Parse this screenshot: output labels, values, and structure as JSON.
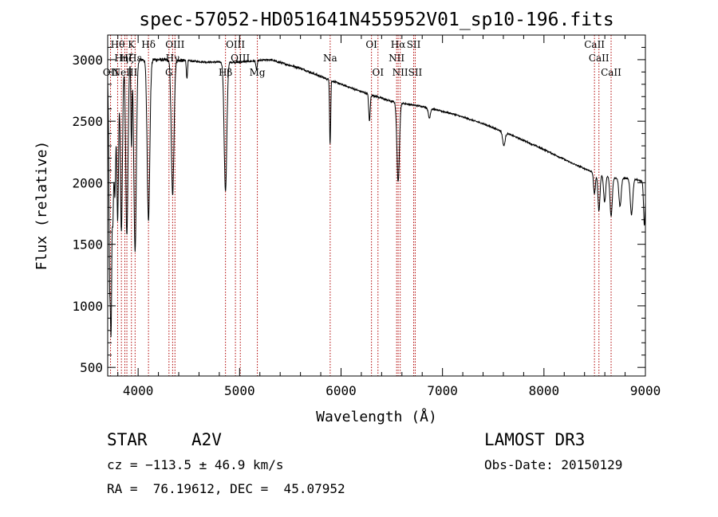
{
  "chart_data": {
    "type": "line",
    "title": "spec-57052-HD051641N455952V01_sp10-196.fits",
    "xlabel": "Wavelength (Å)",
    "ylabel": "Flux (relative)",
    "xlim": [
      3700,
      9000
    ],
    "ylim": [
      430,
      3200
    ],
    "xticks": [
      4000,
      5000,
      6000,
      7000,
      8000,
      9000
    ],
    "yticks": [
      500,
      1000,
      1500,
      2000,
      2500,
      3000
    ],
    "series": [
      {
        "name": "spectrum",
        "continuum": {
          "x": [
            3700,
            3800,
            3900,
            4000,
            4200,
            4500,
            4700,
            5000,
            5300,
            5600,
            5900,
            6200,
            6500,
            6800,
            7100,
            7400,
            7700,
            8000,
            8300,
            8500,
            8700,
            8900,
            9000
          ],
          "y": [
            2900,
            2950,
            2980,
            3000,
            3000,
            2990,
            2980,
            2980,
            3000,
            2930,
            2830,
            2740,
            2660,
            2620,
            2560,
            2480,
            2380,
            2270,
            2150,
            2080,
            2040,
            2030,
            2000
          ]
        },
        "absorption_features": [
          {
            "center": 3720,
            "depth": 1700,
            "width": 8
          },
          {
            "center": 3734,
            "depth": 1600,
            "width": 6
          },
          {
            "center": 3750,
            "depth": 1200,
            "width": 8
          },
          {
            "center": 3771,
            "depth": 1000,
            "width": 8
          },
          {
            "center": 3798,
            "depth": 1250,
            "width": 9
          },
          {
            "center": 3835,
            "depth": 1350,
            "width": 10
          },
          {
            "center": 3889,
            "depth": 1400,
            "width": 11
          },
          {
            "center": 3934,
            "depth": 700,
            "width": 5
          },
          {
            "center": 3970,
            "depth": 1550,
            "width": 12
          },
          {
            "center": 4102,
            "depth": 1300,
            "width": 13
          },
          {
            "center": 4340,
            "depth": 1100,
            "width": 13
          },
          {
            "center": 4481,
            "depth": 150,
            "width": 5
          },
          {
            "center": 4861,
            "depth": 1050,
            "width": 13
          },
          {
            "center": 5167,
            "depth": 80,
            "width": 6
          },
          {
            "center": 5890,
            "depth": 380,
            "width": 4
          },
          {
            "center": 5896,
            "depth": 300,
            "width": 4
          },
          {
            "center": 6280,
            "depth": 220,
            "width": 7
          },
          {
            "center": 6563,
            "depth": 650,
            "width": 12
          },
          {
            "center": 6870,
            "depth": 80,
            "width": 10
          },
          {
            "center": 7605,
            "depth": 110,
            "width": 12
          },
          {
            "center": 8498,
            "depth": 170,
            "width": 9
          },
          {
            "center": 8542,
            "depth": 300,
            "width": 10
          },
          {
            "center": 8598,
            "depth": 220,
            "width": 10
          },
          {
            "center": 8662,
            "depth": 320,
            "width": 11
          },
          {
            "center": 8750,
            "depth": 230,
            "width": 11
          },
          {
            "center": 8863,
            "depth": 290,
            "width": 12
          },
          {
            "center": 8990,
            "depth": 350,
            "width": 8
          }
        ]
      }
    ],
    "line_markers": [
      {
        "x": 3728,
        "label": "OII",
        "row": 2
      },
      {
        "x": 3798,
        "label": "Hθ",
        "row": 0
      },
      {
        "x": 3835,
        "label": "Hη",
        "row": 1
      },
      {
        "x": 3869,
        "label": "NeIII",
        "row": 2
      },
      {
        "x": 3889,
        "label": "Hζ",
        "row": 1
      },
      {
        "x": 3934,
        "label": "K",
        "row": 0
      },
      {
        "x": 3970,
        "label": "Hε",
        "row": 1
      },
      {
        "x": 4102,
        "label": "Hδ",
        "row": 0
      },
      {
        "x": 4304,
        "label": "G",
        "row": 2
      },
      {
        "x": 4340,
        "label": "Hγ",
        "row": 1
      },
      {
        "x": 4363,
        "label": "OIII",
        "row": 0
      },
      {
        "x": 4861,
        "label": "Hβ",
        "row": 2
      },
      {
        "x": 4959,
        "label": "OIII",
        "row": 0
      },
      {
        "x": 5007,
        "label": "OIII",
        "row": 1
      },
      {
        "x": 5175,
        "label": "Mg",
        "row": 2
      },
      {
        "x": 5893,
        "label": "Na",
        "row": 1
      },
      {
        "x": 6300,
        "label": "OI",
        "row": 0
      },
      {
        "x": 6364,
        "label": "OI",
        "row": 2
      },
      {
        "x": 6548,
        "label": "NII",
        "row": 1
      },
      {
        "x": 6563,
        "label": "Hα",
        "row": 0
      },
      {
        "x": 6583,
        "label": "NII",
        "row": 2
      },
      {
        "x": 6716,
        "label": "SII",
        "row": 0
      },
      {
        "x": 6731,
        "label": "SII",
        "row": 2
      },
      {
        "x": 8498,
        "label": "CaII",
        "row": 0
      },
      {
        "x": 8542,
        "label": "CaII",
        "row": 1
      },
      {
        "x": 8662,
        "label": "CaII",
        "row": 2
      }
    ]
  },
  "footer": {
    "object_class": "STAR",
    "subclass": "A2V",
    "cz": "cz = −113.5 ± 46.9 km/s",
    "coords": "RA =  76.19612, DEC =  45.07952",
    "survey": "LAMOST DR3",
    "obs_date": "Obs-Date: 20150129"
  }
}
